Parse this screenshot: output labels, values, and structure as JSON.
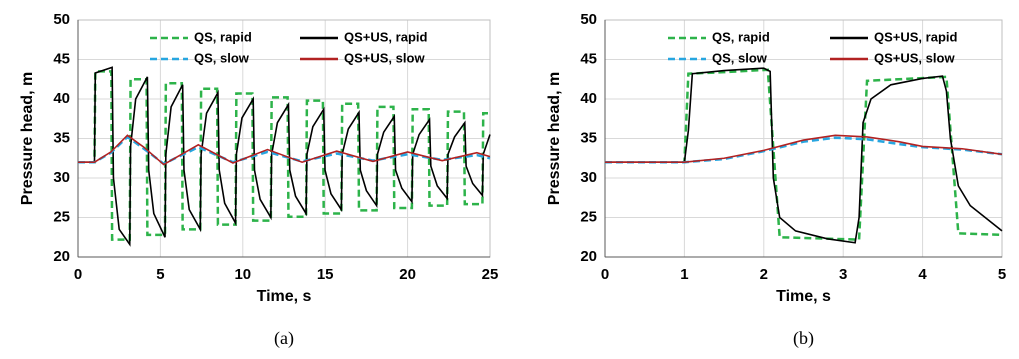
{
  "chart_data": [
    {
      "type": "line",
      "panel": "(a)",
      "xlabel": "Time, s",
      "ylabel": "Pressure head, m",
      "xlim": [
        0,
        25
      ],
      "xticks": [
        0,
        5,
        10,
        15,
        20,
        25
      ],
      "ylim": [
        20,
        50
      ],
      "yticks": [
        20,
        25,
        30,
        35,
        40,
        45,
        50
      ],
      "grid": true,
      "series": [
        {
          "name": "QS, rapid",
          "color": "#2db34a",
          "style": "dashed",
          "x": [
            0,
            1,
            1.05,
            2.02,
            2.07,
            3.14,
            3.19,
            4.16,
            4.21,
            5.28,
            5.33,
            6.3,
            6.35,
            7.42,
            7.47,
            8.44,
            8.49,
            9.56,
            9.61,
            10.58,
            10.63,
            11.7,
            11.75,
            12.72,
            12.77,
            13.84,
            13.89,
            14.86,
            14.91,
            15.98,
            16.03,
            17,
            17.05,
            18.12,
            18.17,
            19.14,
            19.19,
            20.26,
            20.31,
            21.28,
            21.33,
            22.4,
            22.45,
            23.42,
            23.47,
            24.54,
            24.59,
            25
          ],
          "values": [
            32,
            32,
            43.5,
            43.5,
            22.2,
            22.2,
            42.5,
            42.5,
            22.8,
            22.8,
            42,
            42,
            23.5,
            23.5,
            41.3,
            41.3,
            24.1,
            24.1,
            40.7,
            40.7,
            24.6,
            24.6,
            40.2,
            40.2,
            25.1,
            25.1,
            39.8,
            39.8,
            25.5,
            25.5,
            39.4,
            39.4,
            25.9,
            25.9,
            39,
            39,
            26.2,
            26.2,
            38.7,
            38.7,
            26.5,
            26.5,
            38.4,
            38.4,
            26.7,
            26.7,
            38.2,
            38.2
          ]
        },
        {
          "name": "QS+US, rapid",
          "color": "#000000",
          "style": "solid",
          "x": [
            0,
            1,
            1.05,
            2.07,
            2.15,
            2.5,
            3.14,
            3.19,
            3.5,
            4.21,
            4.29,
            4.6,
            5.28,
            5.33,
            5.65,
            6.35,
            6.43,
            6.75,
            7.42,
            7.47,
            7.8,
            8.49,
            8.57,
            8.9,
            9.56,
            9.61,
            9.95,
            10.63,
            10.71,
            11.05,
            11.7,
            11.75,
            12.1,
            12.77,
            12.85,
            13.2,
            13.84,
            13.89,
            14.25,
            14.91,
            14.99,
            15.35,
            15.98,
            16.03,
            16.4,
            17.05,
            17.13,
            17.5,
            18.12,
            18.17,
            18.55,
            19.19,
            19.27,
            19.65,
            20.26,
            20.31,
            20.7,
            21.33,
            21.41,
            21.8,
            22.4,
            22.45,
            22.85,
            23.47,
            23.55,
            23.95,
            24.54,
            24.59,
            25
          ],
          "values": [
            32,
            32,
            43.3,
            44,
            30,
            23.5,
            21.6,
            34,
            40,
            42.8,
            31,
            25.5,
            22.5,
            33,
            39,
            41.8,
            31,
            26,
            23.5,
            33,
            38.2,
            40.8,
            31,
            26.8,
            24.3,
            33,
            37.6,
            40,
            31,
            27.3,
            25,
            33,
            37,
            39.3,
            31,
            27.7,
            25.5,
            33,
            36.5,
            38.7,
            31,
            28,
            26,
            33,
            36.2,
            38.3,
            31,
            28.4,
            26.5,
            33,
            35.8,
            37.8,
            31,
            28.7,
            27,
            33,
            35.5,
            37.4,
            31.5,
            29,
            27.4,
            33,
            35.2,
            37,
            31.5,
            29.3,
            27.8,
            33,
            35.5
          ]
        },
        {
          "name": "QS, slow",
          "color": "#27a6e0",
          "style": "dashed",
          "x": [
            0,
            1,
            2,
            3,
            4,
            5.2,
            7.3,
            9.4,
            11.5,
            13.6,
            15.7,
            17.9,
            20,
            22.1,
            24.2,
            25
          ],
          "values": [
            32,
            32,
            33.2,
            35.2,
            33.7,
            31.8,
            33.9,
            32,
            33.3,
            32.1,
            33.1,
            32.2,
            33,
            32.3,
            32.9,
            32.5
          ]
        },
        {
          "name": "QS+US, slow",
          "color": "#b22222",
          "style": "solid",
          "x": [
            0,
            1,
            2,
            3,
            4,
            5.2,
            7.3,
            9.4,
            11.5,
            13.6,
            15.7,
            17.9,
            20,
            22.1,
            24.2,
            25
          ],
          "values": [
            32,
            32,
            33.3,
            35.4,
            33.9,
            31.7,
            34.2,
            31.9,
            33.6,
            32,
            33.4,
            32.1,
            33.3,
            32.2,
            33.2,
            32.7
          ]
        }
      ]
    },
    {
      "type": "line",
      "panel": "(b)",
      "xlabel": "Time, s",
      "ylabel": "Pressure head, m",
      "xlim": [
        0,
        5
      ],
      "xticks": [
        0,
        1,
        2,
        3,
        4,
        5
      ],
      "ylim": [
        20,
        50
      ],
      "yticks": [
        20,
        25,
        30,
        35,
        40,
        45,
        50
      ],
      "grid": true,
      "series": [
        {
          "name": "QS, rapid",
          "color": "#2db34a",
          "style": "dashed",
          "x": [
            0,
            1,
            1.05,
            1.5,
            2.05,
            2.2,
            3.2,
            3.3,
            4.3,
            4.45,
            5
          ],
          "values": [
            32,
            32,
            43.2,
            43.4,
            43.7,
            22.5,
            22.2,
            42.3,
            42.8,
            23,
            22.8
          ]
        },
        {
          "name": "QS+US, rapid",
          "color": "#000000",
          "style": "solid",
          "x": [
            0,
            1,
            1.05,
            1.1,
            1.5,
            2,
            2.08,
            2.12,
            2.2,
            2.4,
            2.8,
            3.15,
            3.2,
            3.25,
            3.35,
            3.6,
            4,
            4.25,
            4.3,
            4.35,
            4.45,
            4.6,
            5
          ],
          "values": [
            32,
            32,
            36,
            43.2,
            43.6,
            43.9,
            43.5,
            30,
            25,
            23.3,
            22.3,
            21.8,
            25,
            37,
            40,
            41.8,
            42.6,
            42.9,
            41,
            35,
            29,
            26.5,
            23.3
          ]
        },
        {
          "name": "QS, slow",
          "color": "#27a6e0",
          "style": "dashed",
          "x": [
            0,
            1,
            1.5,
            2,
            2.5,
            2.9,
            3.3,
            3.7,
            4,
            4.5,
            5
          ],
          "values": [
            32,
            32,
            32.4,
            33.4,
            34.6,
            35.1,
            34.9,
            34.3,
            33.9,
            33.6,
            33
          ]
        },
        {
          "name": "QS+US, slow",
          "color": "#b22222",
          "style": "solid",
          "x": [
            0,
            1,
            1.5,
            2,
            2.5,
            2.9,
            3.3,
            3.7,
            4,
            4.5,
            5
          ],
          "values": [
            32,
            32,
            32.5,
            33.5,
            34.8,
            35.4,
            35.2,
            34.6,
            34,
            33.7,
            33
          ]
        }
      ]
    }
  ]
}
